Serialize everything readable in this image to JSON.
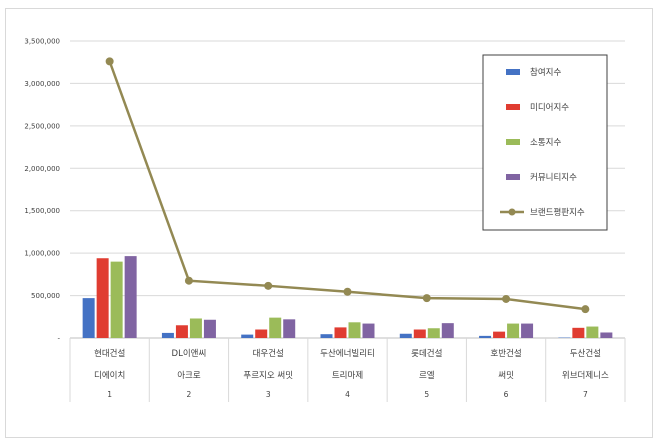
{
  "chart_data": {
    "type": "bar",
    "title": "",
    "xlabel": "",
    "ylabel": "",
    "ylim": [
      0,
      3500000
    ],
    "yticks": [
      0,
      500000,
      1000000,
      1500000,
      2000000,
      2500000,
      3000000,
      3500000
    ],
    "ytick_labels": [
      "-",
      "500,000",
      "1,000,000",
      "1,500,000",
      "2,000,000",
      "2,500,000",
      "3,000,000",
      "3,500,000"
    ],
    "grid": true,
    "legend_position": "right",
    "categories": [
      {
        "company": "현대건설",
        "brand": "디에이치",
        "rank": "1"
      },
      {
        "company": "DL이앤씨",
        "brand": "아크로",
        "rank": "2"
      },
      {
        "company": "대우건설",
        "brand": "푸르지오 써밋",
        "rank": "3"
      },
      {
        "company": "두산에너빌리티",
        "brand": "트리마제",
        "rank": "4"
      },
      {
        "company": "롯데건설",
        "brand": "르엘",
        "rank": "5"
      },
      {
        "company": "호반건설",
        "brand": "써밋",
        "rank": "6"
      },
      {
        "company": "두산건설",
        "brand": "위브더제니스",
        "rank": "7"
      }
    ],
    "series": [
      {
        "name": "참여지수",
        "type": "bar",
        "color": "#4472c4",
        "values": [
          470000,
          60000,
          40000,
          45000,
          50000,
          25000,
          5000
        ]
      },
      {
        "name": "미디어지수",
        "type": "bar",
        "color": "#e03c31",
        "values": [
          940000,
          150000,
          100000,
          125000,
          100000,
          75000,
          120000
        ]
      },
      {
        "name": "소통지수",
        "type": "bar",
        "color": "#9bbb59",
        "values": [
          900000,
          230000,
          240000,
          185000,
          115000,
          170000,
          135000
        ]
      },
      {
        "name": "커뮤니티지수",
        "type": "bar",
        "color": "#8064a2",
        "values": [
          965000,
          215000,
          220000,
          170000,
          175000,
          170000,
          65000
        ]
      },
      {
        "name": "브랜드평판지수",
        "type": "line",
        "color": "#938953",
        "values": [
          3260000,
          675000,
          615000,
          545000,
          470000,
          460000,
          340000
        ]
      }
    ]
  }
}
